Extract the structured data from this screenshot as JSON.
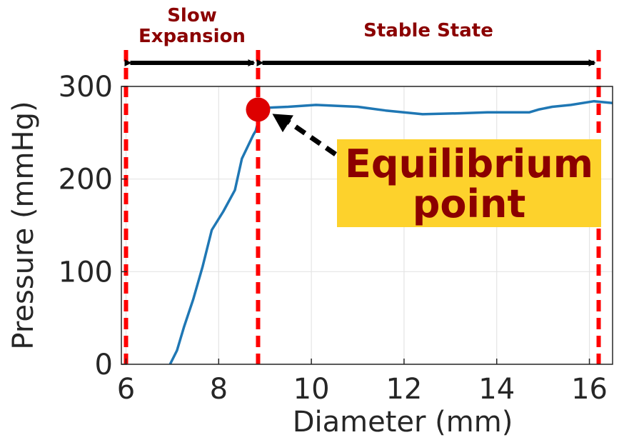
{
  "chart_data": {
    "type": "line",
    "xlabel": "Diameter (mm)",
    "ylabel": "Pressure (mmHg)",
    "xlim": [
      5.9,
      16.5
    ],
    "ylim": [
      0,
      300
    ],
    "xticks": [
      6,
      8,
      10,
      12,
      14,
      16
    ],
    "yticks": [
      0,
      100,
      200,
      300
    ],
    "grid": true,
    "series": [
      {
        "color": "#1f77b4",
        "x": [
          6.95,
          7.1,
          7.25,
          7.45,
          7.65,
          7.85,
          8.1,
          8.35,
          8.5,
          8.75,
          8.8,
          8.85,
          9.05,
          9.5,
          10.1,
          11.0,
          11.6,
          12.4,
          13.2,
          13.8,
          14.7,
          14.9,
          15.2,
          15.6,
          16.1,
          16.5
        ],
        "y": [
          0,
          15,
          40,
          70,
          105,
          145,
          165,
          188,
          222,
          248,
          252,
          262,
          277,
          278,
          280,
          278,
          274,
          270,
          271,
          272,
          272,
          275,
          278,
          280,
          284,
          282
        ]
      }
    ],
    "vlines": {
      "color": "#ff0000",
      "style": "dashed",
      "x": [
        6.0,
        8.85,
        16.2
      ]
    },
    "regions": [
      {
        "label_lines": [
          "Slow",
          "Expansion"
        ],
        "x_start": 6.0,
        "x_end": 8.85
      },
      {
        "label_lines": [
          "Stable State"
        ],
        "x_start": 8.85,
        "x_end": 16.2
      }
    ],
    "marker": {
      "x": 8.85,
      "y": 275,
      "color": "#dd0000"
    },
    "annotation": {
      "lines": [
        "Equilibrium",
        "point"
      ],
      "background": "#fdd22c",
      "text_color": "#8b0000",
      "arrow_to": {
        "x": 8.85,
        "y": 275
      }
    }
  }
}
